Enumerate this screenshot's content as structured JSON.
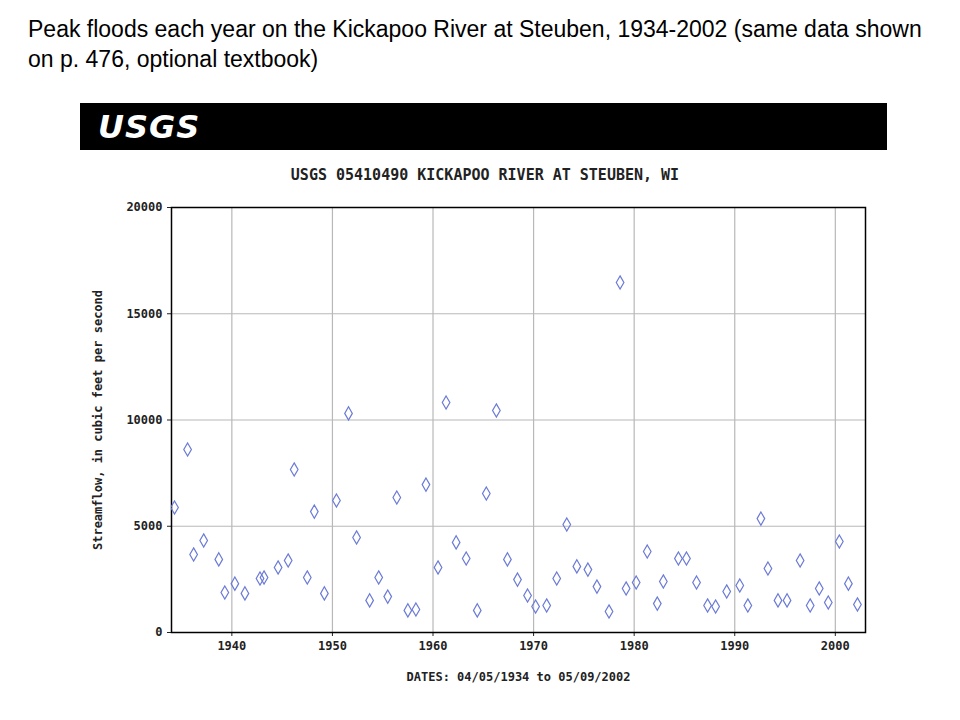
{
  "chart_data": {
    "type": "scatter",
    "heading": "Peak floods each year on the Kickapoo River at Steuben, 1934-2002 (same data shown on p. 476, optional textbook)",
    "banner": "USGS",
    "title": "USGS 05410490 KICKAPOO RIVER AT STEUBEN, WI",
    "x_label": "DATES: 04/05/1934 to 05/09/2002",
    "y_label": "Streamflow, in cubic feet per second",
    "x": [
      1934.3,
      1935.6,
      1936.2,
      1937.2,
      1938.7,
      1939.3,
      1940.3,
      1941.3,
      1942.8,
      1943.2,
      1944.6,
      1945.6,
      1946.2,
      1947.5,
      1948.2,
      1949.2,
      1950.4,
      1951.6,
      1952.4,
      1953.7,
      1954.6,
      1955.5,
      1956.4,
      1957.5,
      1958.3,
      1959.3,
      1960.5,
      1961.3,
      1962.3,
      1963.3,
      1964.4,
      1965.3,
      1966.3,
      1967.4,
      1968.4,
      1969.4,
      1970.2,
      1971.3,
      1972.3,
      1973.3,
      1974.3,
      1975.4,
      1976.3,
      1977.5,
      1978.6,
      1979.2,
      1980.2,
      1981.3,
      1982.3,
      1982.9,
      1984.4,
      1985.2,
      1986.2,
      1987.3,
      1988.1,
      1989.2,
      1990.5,
      1991.3,
      1992.6,
      1993.3,
      1994.3,
      1995.2,
      1996.5,
      1997.5,
      1998.4,
      1999.3,
      2000.4,
      2001.3,
      2002.2
    ],
    "values": [
      5880,
      8610,
      3670,
      4330,
      3440,
      1880,
      2300,
      1840,
      2540,
      2590,
      3060,
      3390,
      7670,
      2590,
      5690,
      1840,
      6210,
      10310,
      4470,
      1510,
      2590,
      1690,
      6350,
      1040,
      1080,
      6960,
      3060,
      10820,
      4240,
      3480,
      1040,
      6540,
      10450,
      3440,
      2490,
      1740,
      1220,
      1270,
      2540,
      5080,
      3110,
      2960,
      2160,
      990,
      16470,
      2070,
      2350,
      3810,
      1360,
      2400,
      3480,
      3480,
      2350,
      1270,
      1220,
      1930,
      2210,
      1270,
      5360,
      3010,
      1510,
      1510,
      3390,
      1270,
      2070,
      1410,
      4280,
      2300,
      1320
    ],
    "color": "#6b7bd6",
    "marker": "diamond",
    "xlim": [
      1934,
      2003
    ],
    "xticks": [
      1940,
      1950,
      1960,
      1970,
      1980,
      1990,
      2000
    ],
    "ylim": [
      0,
      20000
    ],
    "yticks": [
      0,
      5000,
      10000,
      15000,
      20000
    ],
    "grid": true
  }
}
